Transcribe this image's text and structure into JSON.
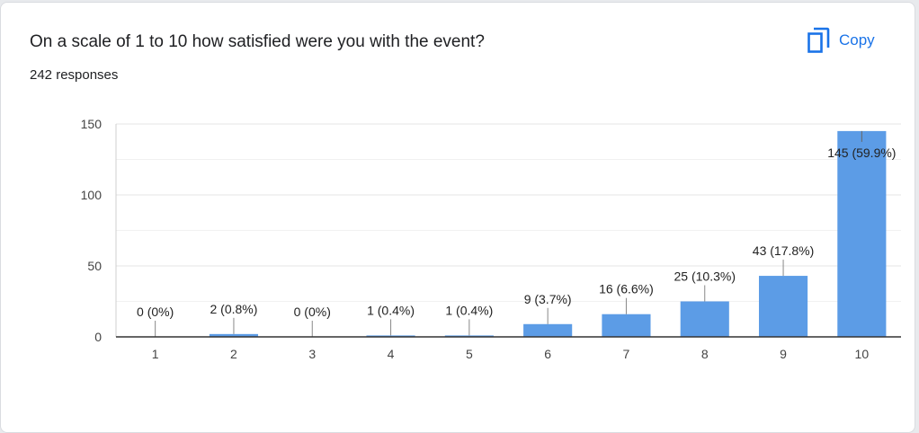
{
  "header": {
    "question": "On a scale of 1 to 10 how satisfied were you with the event?",
    "responses": "242 responses",
    "copy_label": "Copy",
    "copy_icon": "copy-icon"
  },
  "colors": {
    "accent": "#1a73e8",
    "bar": "#5c9ce6",
    "grid": "#e5e5e5",
    "axis": "#333333"
  },
  "chart_data": {
    "type": "bar",
    "categories": [
      "1",
      "2",
      "3",
      "4",
      "5",
      "6",
      "7",
      "8",
      "9",
      "10"
    ],
    "values": [
      0,
      2,
      0,
      1,
      1,
      9,
      16,
      25,
      43,
      145
    ],
    "data_labels": [
      "0 (0%)",
      "2 (0.8%)",
      "0 (0%)",
      "1 (0.4%)",
      "1 (0.4%)",
      "9 (3.7%)",
      "16 (6.6%)",
      "25 (10.3%)",
      "43 (17.8%)",
      "145 (59.9%)"
    ],
    "ylim": [
      0,
      150
    ],
    "yticks": [
      0,
      50,
      100,
      150
    ],
    "grid": true,
    "legend": "none"
  }
}
